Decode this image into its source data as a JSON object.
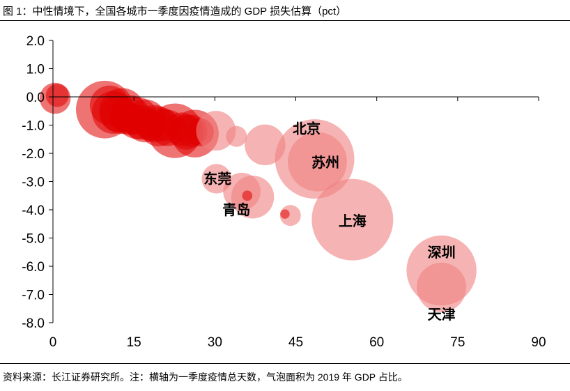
{
  "header": {
    "title": "图 1：中性情境下，全国各城市一季度因疫情造成的 GDP 损失估算（pct）"
  },
  "footer": {
    "source": "资料来源：长江证券研究所。注：横轴为一季度疫情总天数，气泡面积为 2019 年 GDP 占比。"
  },
  "colors": {
    "deep": "#e00000",
    "light": "#f08080",
    "axis": "#000000"
  },
  "chart_data": {
    "type": "scatter",
    "variant": "bubble",
    "title": "",
    "xlabel": "",
    "ylabel": "",
    "xlim": [
      0,
      90
    ],
    "ylim": [
      -8,
      2
    ],
    "x_ticks": [
      0,
      15,
      30,
      45,
      60,
      75,
      90
    ],
    "y_ticks": [
      2.0,
      1.0,
      0.0,
      -1.0,
      -2.0,
      -3.0,
      -4.0,
      -5.0,
      -6.0,
      -7.0,
      -8.0
    ],
    "y_tick_labels": [
      "2.0",
      "1.0",
      "0.0",
      "-1.0",
      "-2.0",
      "-3.0",
      "-4.0",
      "-5.0",
      "-6.0",
      "-7.0",
      "-8.0"
    ],
    "grid": false,
    "size_encoding": "2019年GDP占比",
    "points": [
      {
        "x": 0.4,
        "y": -0.05,
        "size": 0.55,
        "shade": "deep"
      },
      {
        "x": 0.8,
        "y": 0.05,
        "size": 0.3,
        "shade": "deep"
      },
      {
        "x": 9.6,
        "y": -0.45,
        "size": 1.9,
        "shade": "deep"
      },
      {
        "x": 10.5,
        "y": -0.3,
        "size": 0.9,
        "shade": "deep"
      },
      {
        "x": 11.2,
        "y": -0.55,
        "size": 1.05,
        "shade": "deep"
      },
      {
        "x": 12.0,
        "y": -0.6,
        "size": 0.75,
        "shade": "deep"
      },
      {
        "x": 12.8,
        "y": -0.5,
        "size": 1.2,
        "shade": "deep"
      },
      {
        "x": 13.5,
        "y": -0.7,
        "size": 0.6,
        "shade": "deep"
      },
      {
        "x": 14.3,
        "y": -0.65,
        "size": 0.9,
        "shade": "deep"
      },
      {
        "x": 15.0,
        "y": -0.8,
        "size": 0.5,
        "shade": "deep"
      },
      {
        "x": 15.6,
        "y": -0.75,
        "size": 1.0,
        "shade": "deep"
      },
      {
        "x": 16.4,
        "y": -0.9,
        "size": 0.7,
        "shade": "deep"
      },
      {
        "x": 17.1,
        "y": -0.85,
        "size": 1.05,
        "shade": "deep"
      },
      {
        "x": 18.0,
        "y": -1.0,
        "size": 0.55,
        "shade": "deep"
      },
      {
        "x": 18.8,
        "y": -0.95,
        "size": 0.8,
        "shade": "deep"
      },
      {
        "x": 19.6,
        "y": -1.05,
        "size": 0.9,
        "shade": "deep"
      },
      {
        "x": 20.5,
        "y": -1.0,
        "size": 0.6,
        "shade": "deep"
      },
      {
        "x": 21.3,
        "y": -1.1,
        "size": 0.75,
        "shade": "deep"
      },
      {
        "x": 22.6,
        "y": -1.2,
        "size": 1.7,
        "shade": "deep"
      },
      {
        "x": 23.8,
        "y": -1.15,
        "size": 0.65,
        "shade": "deep"
      },
      {
        "x": 24.7,
        "y": -1.25,
        "size": 0.7,
        "shade": "deep"
      },
      {
        "x": 25.6,
        "y": -1.2,
        "size": 0.6,
        "shade": "deep"
      },
      {
        "x": 26.3,
        "y": -1.3,
        "size": 1.3,
        "shade": "deep"
      },
      {
        "x": 27.2,
        "y": -1.25,
        "size": 0.45,
        "shade": "deep"
      },
      {
        "x": 30.2,
        "y": -1.2,
        "size": 0.9,
        "shade": "light"
      },
      {
        "x": 34.0,
        "y": -1.4,
        "size": 0.25,
        "shade": "light"
      },
      {
        "x": 39.3,
        "y": -1.7,
        "size": 0.95,
        "shade": "light"
      },
      {
        "x": 30.3,
        "y": -2.9,
        "size": 0.5,
        "shade": "light"
      },
      {
        "x": 35.0,
        "y": -3.35,
        "size": 0.8,
        "shade": "light"
      },
      {
        "x": 37.0,
        "y": -3.55,
        "size": 1.05,
        "shade": "light"
      },
      {
        "x": 36.0,
        "y": -3.5,
        "size": 0.06,
        "shade": "deep"
      },
      {
        "x": 44.0,
        "y": -4.2,
        "size": 0.25,
        "shade": "light"
      },
      {
        "x": 43.0,
        "y": -4.15,
        "size": 0.05,
        "shade": "deep"
      },
      {
        "x": 48.5,
        "y": -2.2,
        "size": 3.6,
        "shade": "light"
      },
      {
        "x": 49.0,
        "y": -2.3,
        "size": 2.0,
        "shade": "light"
      },
      {
        "x": 55.5,
        "y": -4.35,
        "size": 3.8,
        "shade": "light"
      },
      {
        "x": 72.0,
        "y": -6.15,
        "size": 2.8,
        "shade": "light"
      },
      {
        "x": 72.0,
        "y": -6.75,
        "size": 1.4,
        "shade": "light"
      }
    ],
    "labels": [
      {
        "text": "北京",
        "x": 47.0,
        "y": -1.12
      },
      {
        "text": "苏州",
        "x": 50.5,
        "y": -2.32
      },
      {
        "text": "东莞",
        "x": 30.5,
        "y": -2.9
      },
      {
        "text": "青岛",
        "x": 34.0,
        "y": -4.0
      },
      {
        "text": "上海",
        "x": 55.5,
        "y": -4.4
      },
      {
        "text": "深圳",
        "x": 72.0,
        "y": -5.5
      },
      {
        "text": "天津",
        "x": 72.0,
        "y": -7.7
      }
    ]
  }
}
